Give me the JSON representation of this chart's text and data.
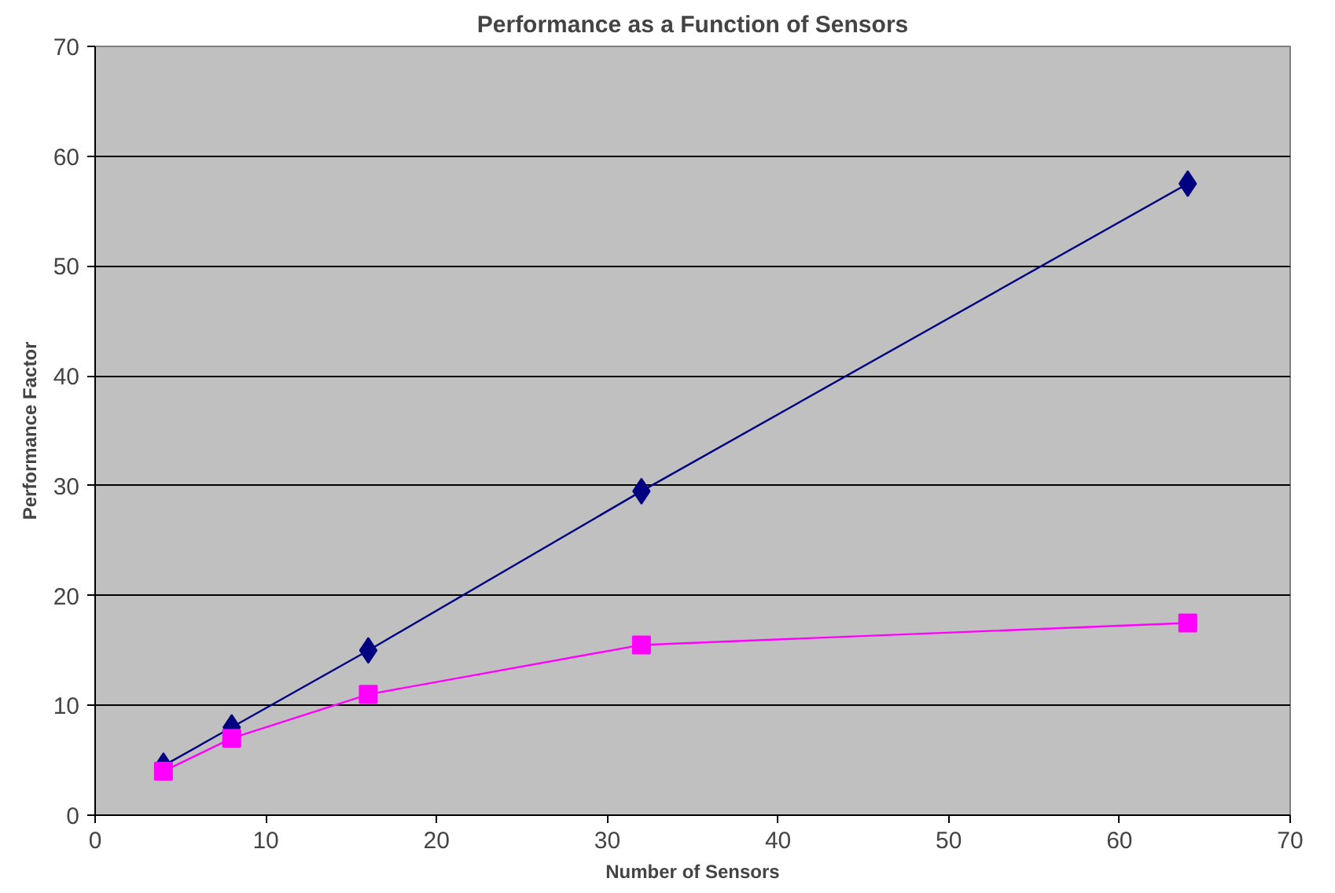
{
  "chart_data": {
    "type": "line",
    "title": "Performance as a Function of Sensors",
    "xlabel": "Number of Sensors",
    "ylabel": "Performance Factor",
    "x": [
      4,
      8,
      16,
      32,
      64
    ],
    "series": [
      {
        "color": "#000080",
        "values": [
          4.5,
          8,
          15,
          29.5,
          57.5
        ],
        "marker": "diamond"
      },
      {
        "color": "#ff00ff",
        "values": [
          4,
          7,
          11,
          15.5,
          17.5
        ],
        "marker": "square"
      }
    ],
    "xlim": [
      0,
      70
    ],
    "ylim": [
      0,
      70
    ],
    "xticks": [
      0,
      10,
      20,
      30,
      40,
      50,
      60,
      70
    ],
    "yticks": [
      0,
      10,
      20,
      30,
      40,
      50,
      60,
      70
    ],
    "grid": "y",
    "line_style": "solid"
  }
}
